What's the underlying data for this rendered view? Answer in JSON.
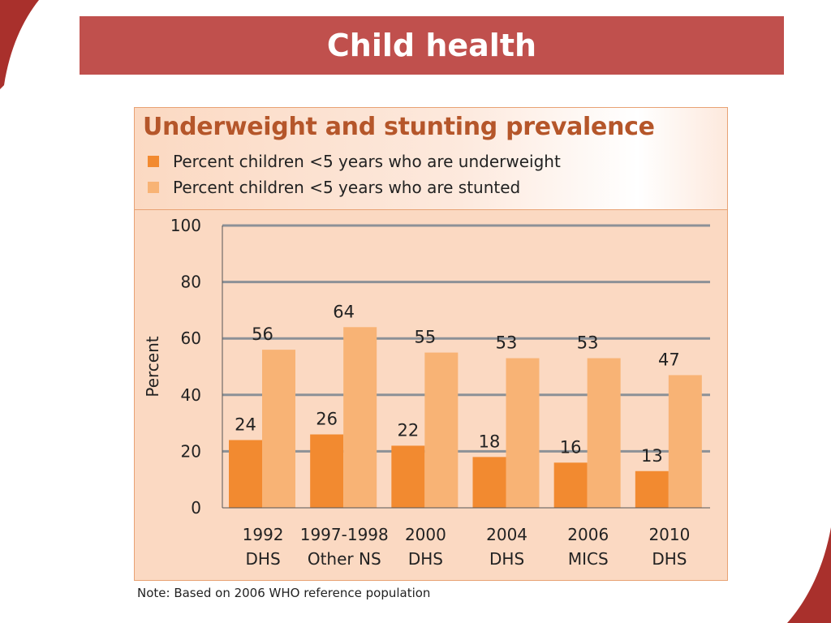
{
  "slide": {
    "title": "Child health",
    "note": "Note: Based on 2006 WHO reference population"
  },
  "colors": {
    "underweight": "#f28a30",
    "stunted": "#f8b375",
    "accent": "#c0504d"
  },
  "chart_data": {
    "type": "bar",
    "title": "Underweight and stunting prevalence",
    "ylabel": "Percent",
    "ylim": [
      0,
      100
    ],
    "yticks": [
      0,
      20,
      40,
      60,
      80,
      100
    ],
    "grid": true,
    "legend_position": "top-left",
    "categories": [
      [
        "1992",
        "DHS"
      ],
      [
        "1997-1998",
        "Other NS"
      ],
      [
        "2000",
        "DHS"
      ],
      [
        "2004",
        "DHS"
      ],
      [
        "2006",
        "MICS"
      ],
      [
        "2010",
        "DHS"
      ]
    ],
    "series": [
      {
        "name": "Percent children <5 years who are underweight",
        "values": [
          24,
          26,
          22,
          18,
          16,
          13
        ]
      },
      {
        "name": "Percent children <5 years who are stunted",
        "values": [
          56,
          64,
          55,
          53,
          53,
          47
        ]
      }
    ]
  }
}
